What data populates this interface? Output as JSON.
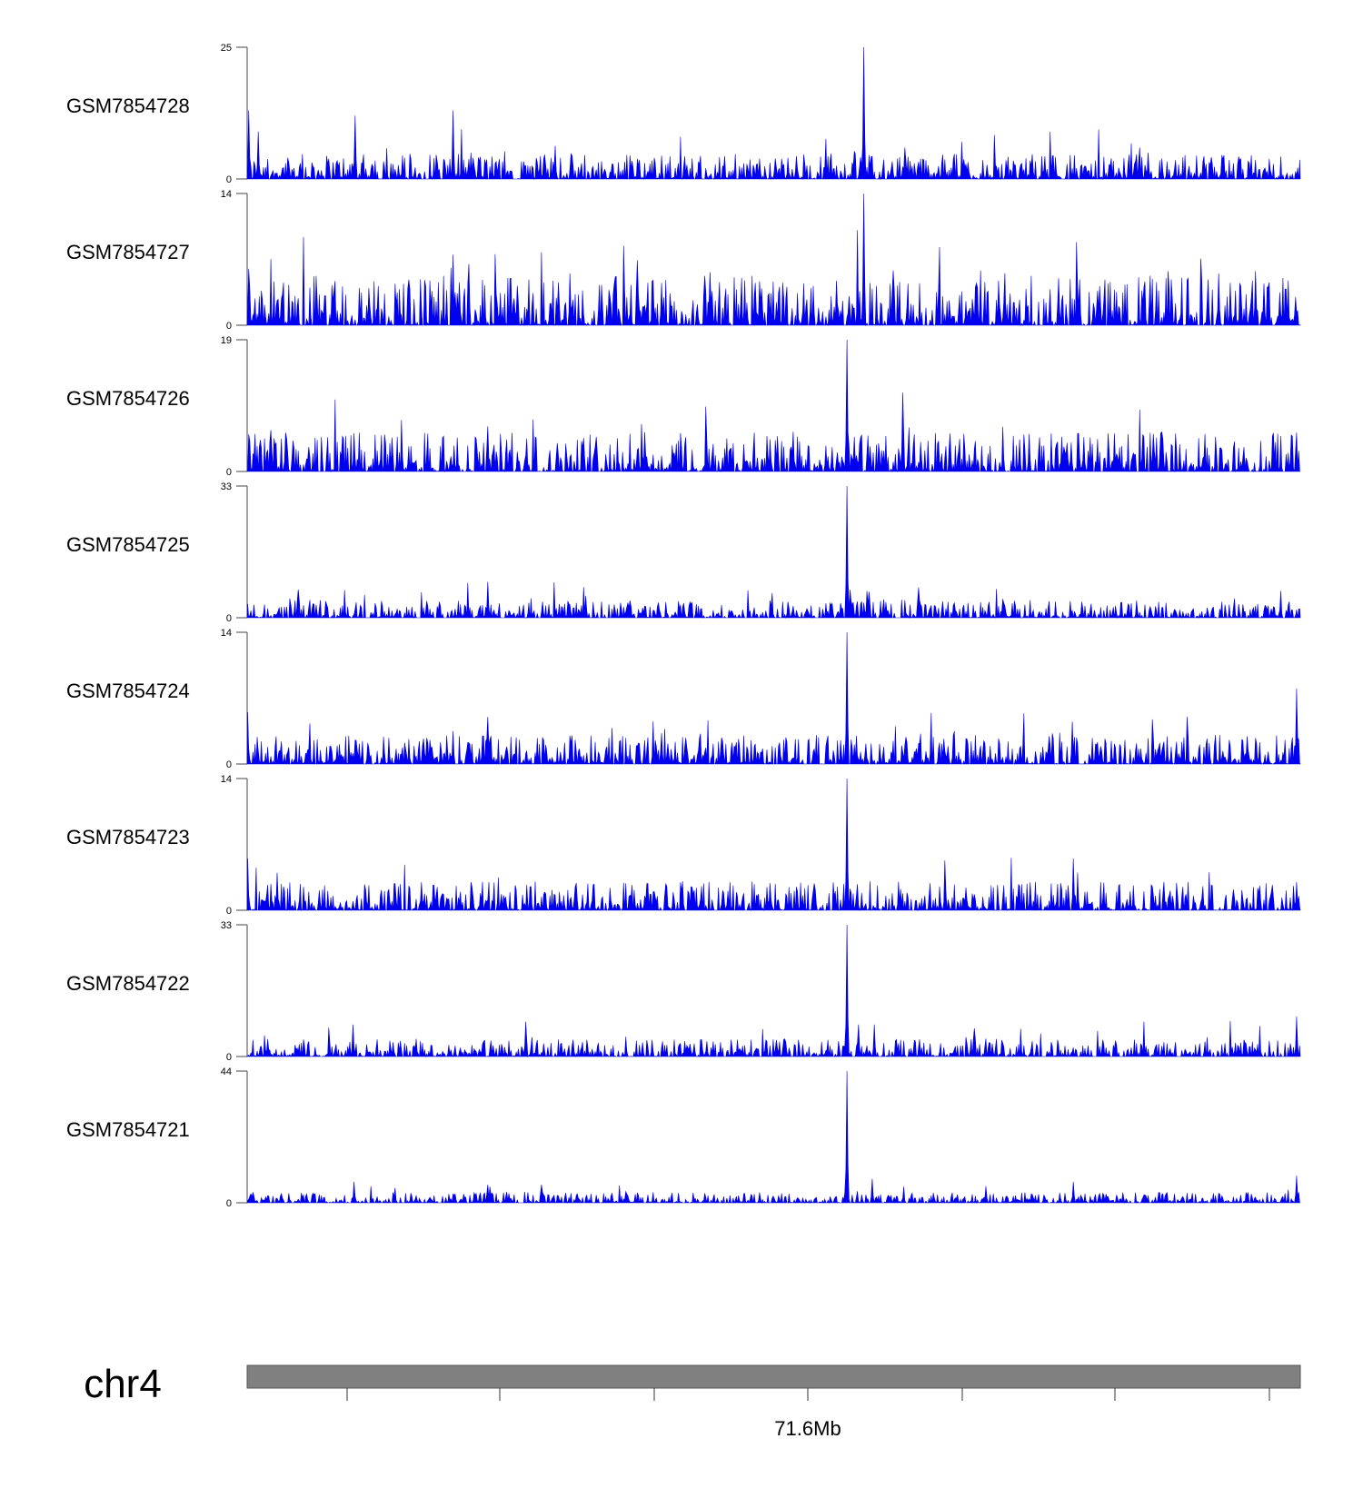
{
  "chart_data": {
    "type": "area",
    "title": "",
    "color": "#0000ee",
    "bins": 1000,
    "tracks": [
      {
        "name": "GSM7854728",
        "ymax": 25,
        "baseline": 2.2,
        "peaks": [
          [
            585,
            25
          ],
          [
            1,
            13
          ],
          [
            10,
            9
          ],
          [
            102,
            12
          ],
          [
            195,
            13
          ],
          [
            212,
            5
          ],
          [
            855,
            5
          ]
        ]
      },
      {
        "name": "GSM7854727",
        "ymax": 14,
        "baseline": 2.4,
        "peaks": [
          [
            585,
            14
          ],
          [
            1,
            6
          ],
          [
            195,
            7.5
          ],
          [
            210,
            6.5
          ],
          [
            306,
            5.5
          ],
          [
            393,
            4.5
          ],
          [
            482,
            4.5
          ],
          [
            770,
            5
          ],
          [
            922,
            5.5
          ],
          [
            933,
            4.5
          ],
          [
            995,
            3
          ]
        ]
      },
      {
        "name": "GSM7854726",
        "ymax": 19,
        "baseline": 2.6,
        "peaks": [
          [
            569,
            19
          ],
          [
            228,
            6.5
          ],
          [
            576,
            5
          ],
          [
            604,
            3
          ],
          [
            850,
            4
          ]
        ]
      },
      {
        "name": "GSM7854725",
        "ymax": 33,
        "baseline": 2.0,
        "peaks": [
          [
            569,
            33
          ],
          [
            228,
            9
          ],
          [
            572,
            7
          ],
          [
            590,
            6.5
          ],
          [
            321,
            5.5
          ],
          [
            280,
            4
          ]
        ]
      },
      {
        "name": "GSM7854724",
        "ymax": 14,
        "baseline": 1.4,
        "peaks": [
          [
            569,
            14
          ],
          [
            996,
            8
          ],
          [
            0,
            5.5
          ],
          [
            228,
            5
          ],
          [
            195,
            3.5
          ],
          [
            783,
            4.5
          ],
          [
            578,
            3
          ]
        ]
      },
      {
        "name": "GSM7854723",
        "ymax": 14,
        "baseline": 1.4,
        "peaks": [
          [
            569,
            14
          ],
          [
            784,
            5.5
          ],
          [
            0,
            5.5
          ],
          [
            28,
            4
          ],
          [
            996,
            3
          ],
          [
            870,
            3
          ]
        ]
      },
      {
        "name": "GSM7854722",
        "ymax": 33,
        "baseline": 2.0,
        "peaks": [
          [
            569,
            33
          ],
          [
            996,
            10
          ],
          [
            580,
            8
          ],
          [
            595,
            8
          ],
          [
            100,
            8
          ],
          [
            580,
            6
          ]
        ]
      },
      {
        "name": "GSM7854721",
        "ymax": 44,
        "baseline": 1.6,
        "peaks": [
          [
            569,
            44
          ],
          [
            996,
            9
          ],
          [
            593,
            8
          ],
          [
            101,
            7
          ],
          [
            784,
            7
          ],
          [
            228,
            6
          ],
          [
            701,
            5.5
          ]
        ]
      }
    ],
    "y_tick_min": 0,
    "chromosome": "chr4",
    "x_tick_labels": [
      "",
      "",
      "",
      "71.6Mb",
      "",
      "",
      ""
    ],
    "xlabel": "",
    "ylabel": ""
  }
}
